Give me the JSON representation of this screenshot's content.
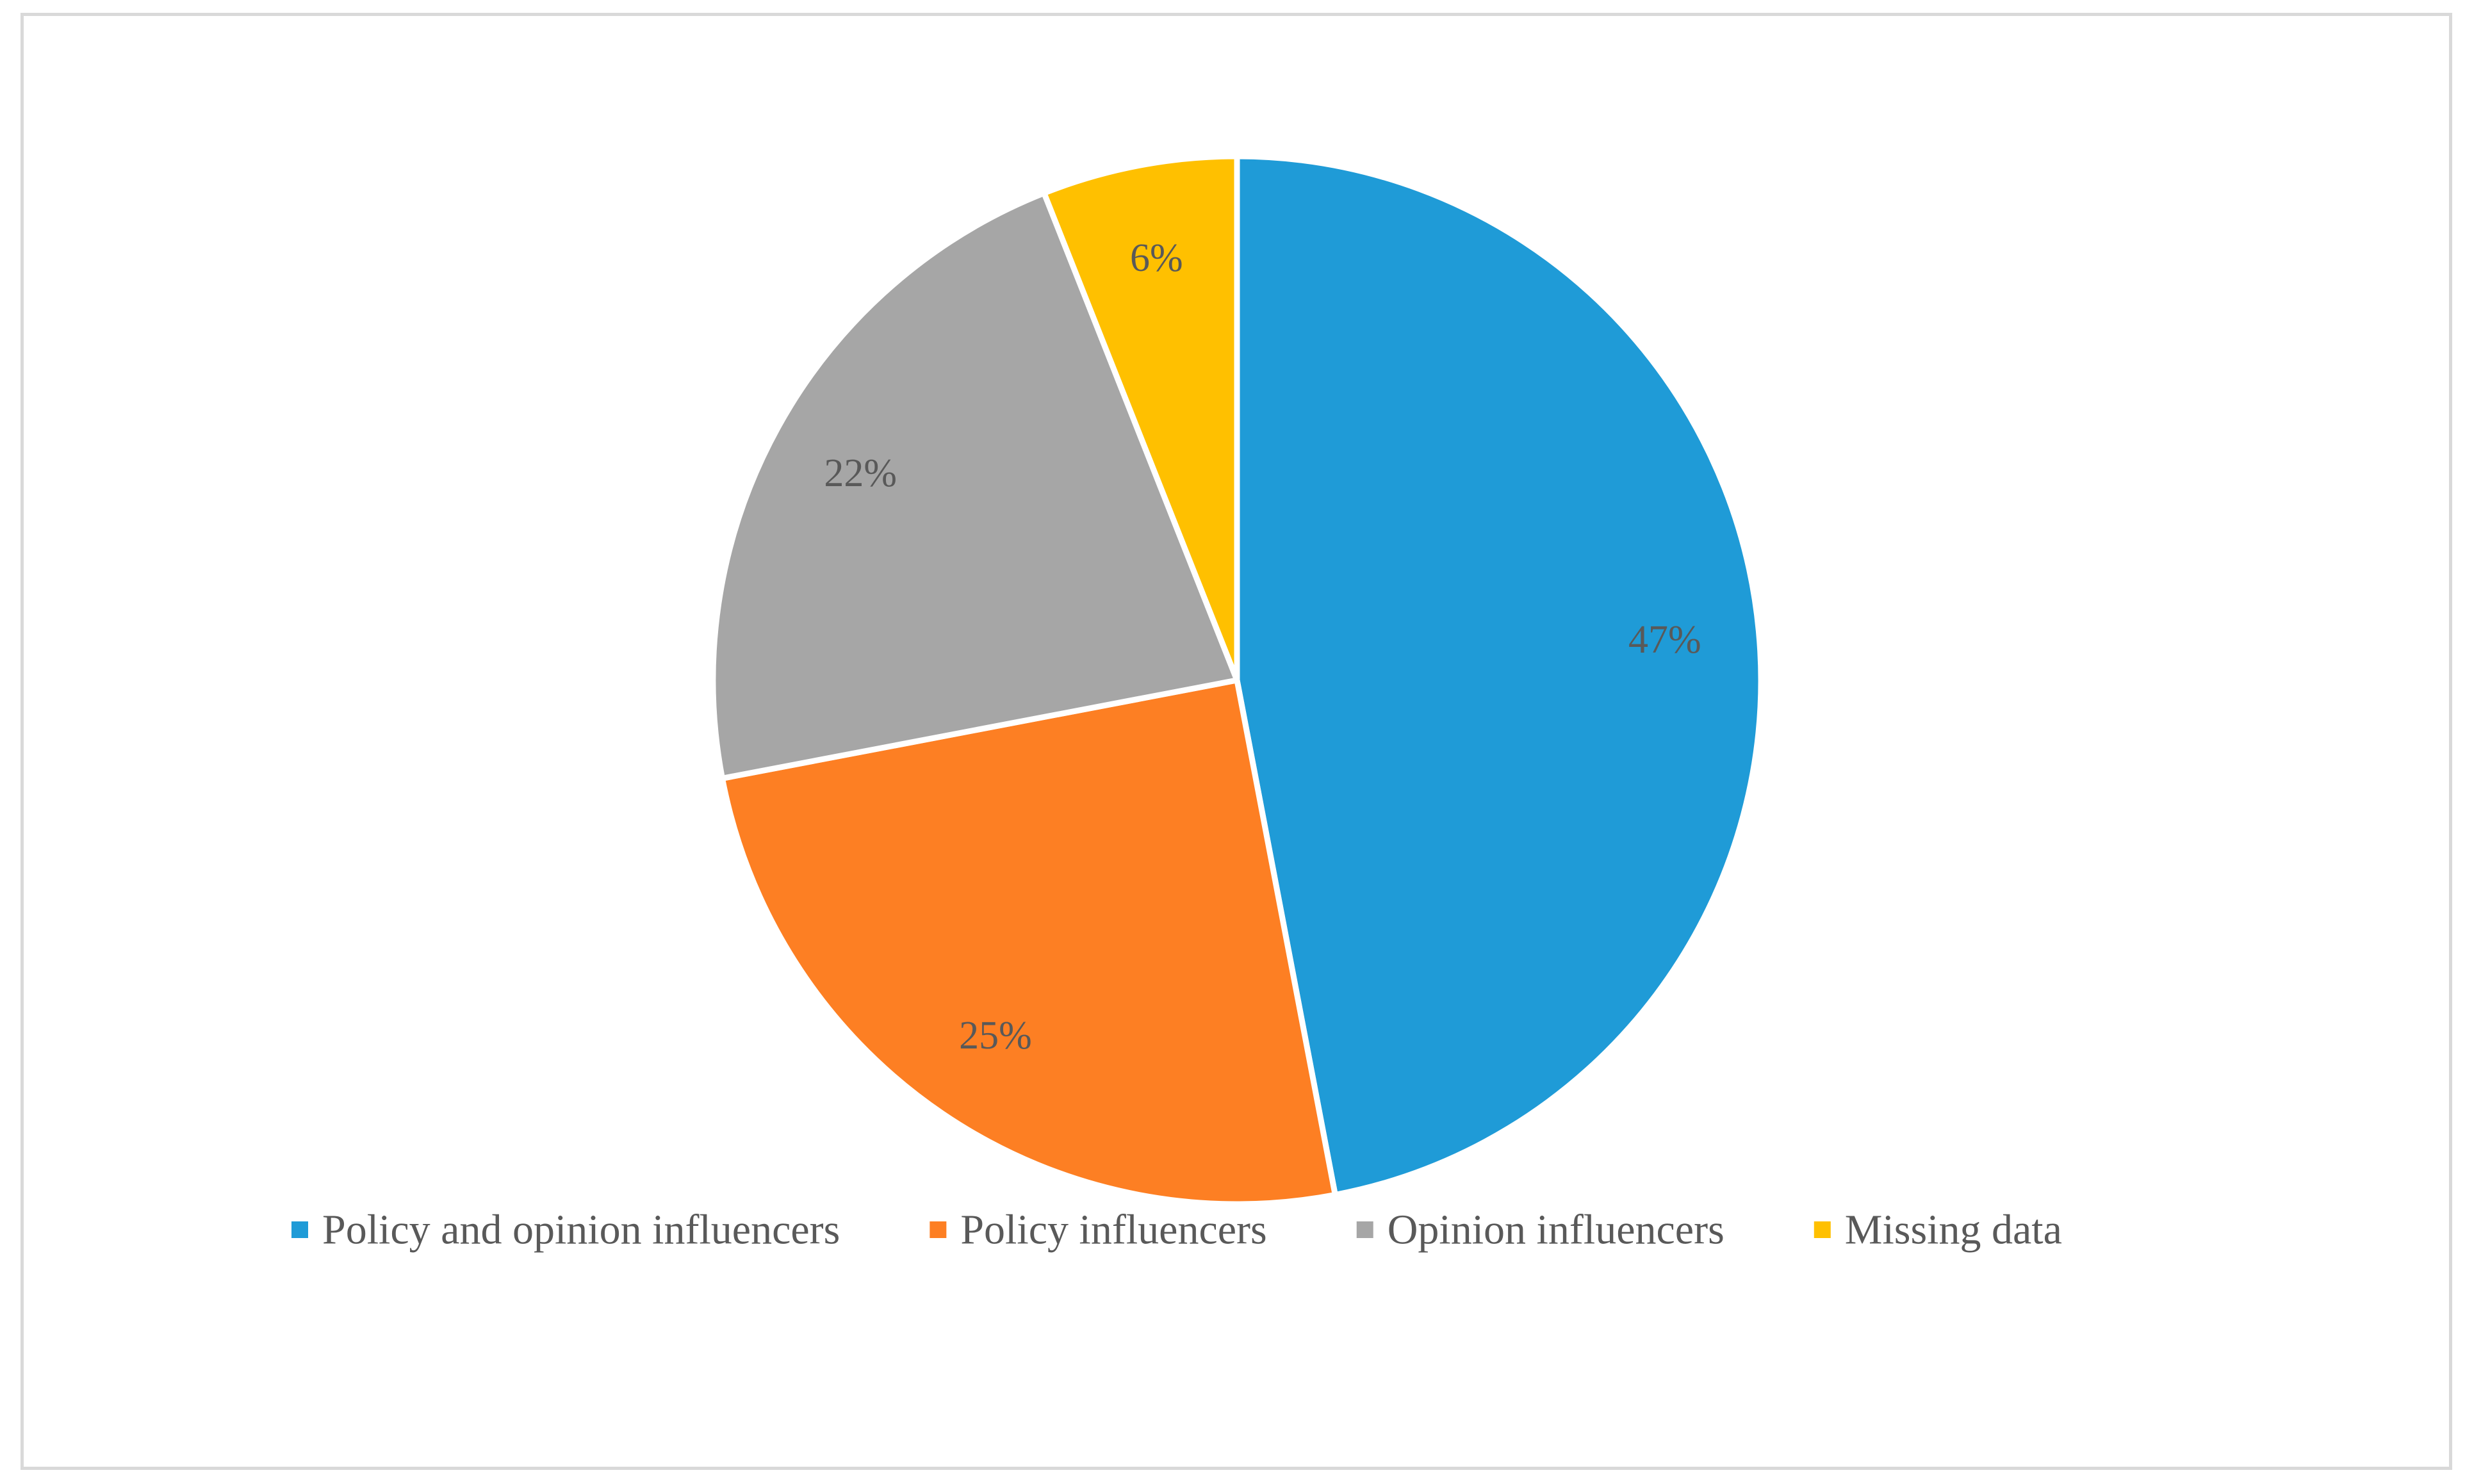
{
  "chart_data": {
    "type": "pie",
    "title": "",
    "slices": [
      {
        "label": "Policy and opinion influencers",
        "value": 47,
        "display": "47%",
        "color": "#1F9BD7"
      },
      {
        "label": "Policy influencers",
        "value": 25,
        "display": "25%",
        "color": "#FD7F23"
      },
      {
        "label": "Opinion influencers",
        "value": 22,
        "display": "22%",
        "color": "#A6A6A6"
      },
      {
        "label": "Missing data",
        "value": 6,
        "display": "6%",
        "color": "#FFC000"
      }
    ],
    "start": "12 o'clock",
    "direction": "clockwise",
    "legend_position": "bottom",
    "slice_border_color": "#ffffff"
  }
}
